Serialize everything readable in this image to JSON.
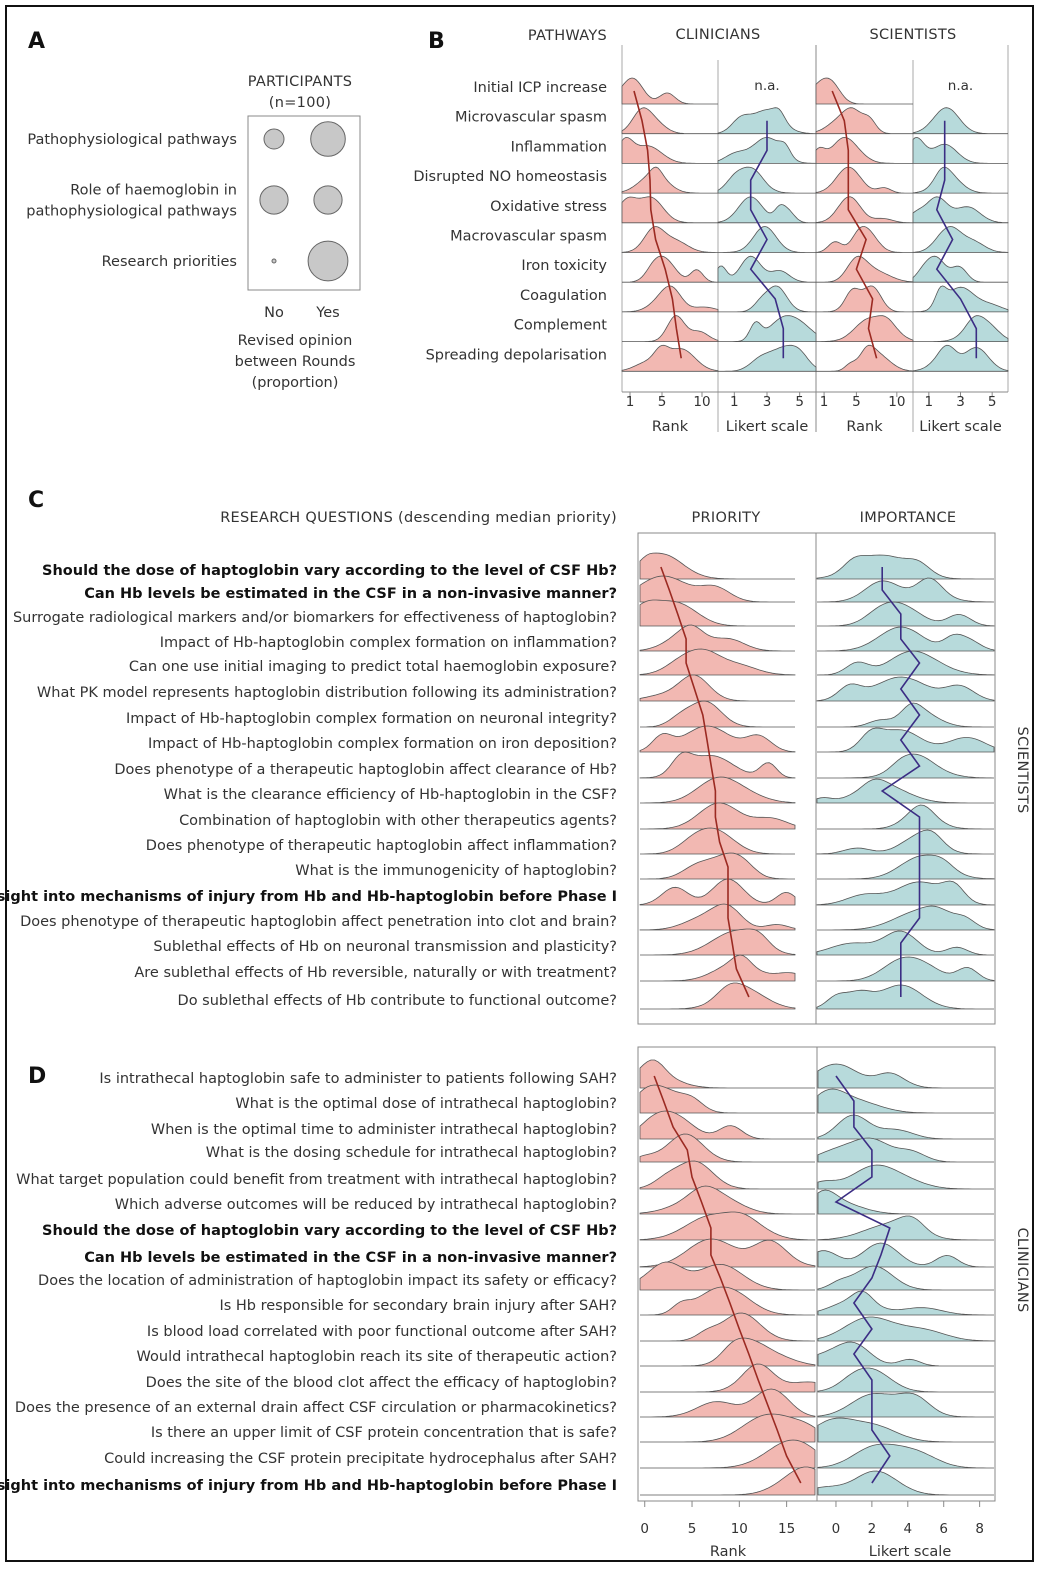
{
  "colors": {
    "rank": "#f2b8b2",
    "rank_line": "#9b2a22",
    "likert": "#b7dadb",
    "likert_line": "#3b2d84",
    "outline": "#555555"
  },
  "panels": {
    "a": "A",
    "b": "B",
    "c": "C",
    "d": "D"
  },
  "chart_data": [
    {
      "type": "scatter",
      "panel": "A",
      "title": "PARTICIPANTS",
      "subtitle": "(n=100)",
      "rows": [
        "Pathophysiological pathways",
        "Role of haemoglobin in pathophysiological pathways",
        "Research priorities"
      ],
      "row_lines": [
        [
          "Pathophysiological pathways"
        ],
        [
          "Role of haemoglobin in",
          "pathophysiological pathways"
        ],
        [
          "Research priorities"
        ]
      ],
      "columns": [
        "No",
        "Yes"
      ],
      "values": [
        [
          0.25,
          0.75
        ],
        [
          0.5,
          0.5
        ],
        [
          0.01,
          0.99
        ]
      ],
      "xlabel_lines": [
        "Revised opinion",
        "between Rounds",
        "(proportion)"
      ]
    },
    {
      "type": "area",
      "panel": "B",
      "row_header": "PATHWAYS",
      "rows": [
        "Initial ICP increase",
        "Microvascular spasm",
        "Inflammation",
        "Disrupted NO homeostasis",
        "Oxidative stress",
        "Macrovascular spasm",
        "Iron toxicity",
        "Coagulation",
        "Complement",
        "Spreading depolarisation"
      ],
      "groups": [
        "CLINICIANS",
        "SCIENTISTS"
      ],
      "na_text": "n.a.",
      "rank_axis": {
        "label": "Rank",
        "ticks": [
          1,
          5,
          10
        ],
        "range": [
          0,
          12
        ]
      },
      "likert_axis": {
        "label": "Likert scale",
        "ticks": [
          1,
          3,
          5
        ],
        "range": [
          0,
          6
        ]
      },
      "series": [
        {
          "name": "CLINICIANS",
          "rank_median": [
            1.5,
            2.5,
            3.2,
            3.5,
            3.6,
            4.2,
            5.4,
            6.3,
            6.8,
            7.4
          ],
          "likert_median": [
            null,
            3,
            3,
            2,
            2,
            3,
            2,
            3.5,
            4,
            4
          ]
        },
        {
          "name": "SCIENTISTS",
          "rank_median": [
            2,
            3.5,
            4,
            4,
            4,
            6.2,
            5,
            7,
            6.5,
            7.5
          ],
          "likert_median": [
            null,
            2,
            2,
            2,
            1.5,
            2.5,
            1.5,
            3,
            4,
            4
          ]
        }
      ]
    },
    {
      "type": "area",
      "panel": "C",
      "group": "SCIENTISTS",
      "row_header": "RESEARCH QUESTIONS (descending median priority)",
      "columns": [
        "PRIORITY",
        "IMPORTANCE"
      ],
      "bold_rows": [
        0,
        1,
        13
      ],
      "rows": [
        "Should the dose of haptoglobin vary according to the level of CSF Hb?",
        "Can Hb levels be estimated in the CSF in a non-invasive manner?",
        "Surrogate radiological markers and/or biomarkers for effectiveness of haptoglobin?",
        "Impact of Hb-haptoglobin complex formation on inflammation?",
        "Can one use initial imaging to predict total haemoglobin exposure?",
        "What PK model represents haptoglobin distribution following its administration?",
        "Impact of Hb-haptoglobin complex formation on neuronal integrity?",
        "Impact of Hb-haptoglobin complex formation on iron deposition?",
        "Does phenotype of a therapeutic haptoglobin affect clearance of Hb?",
        "What is the clearance efficiency of Hb-haptoglobin in the CSF?",
        "Combination of haptoglobin with other therapeutics agents?",
        "Does phenotype of therapeutic haptoglobin affect inflammation?",
        "What is the immunogenicity of haptoglobin?",
        "Further insight into mechanisms of injury from Hb and Hb-haptoglobin before Phase I",
        "Does phenotype of therapeutic haptoglobin affect penetration into clot and brain?",
        "Sublethal effects of Hb on neuronal transmission and plasticity?",
        "Are sublethal effects of Hb reversible, naturally or with treatment?",
        "Do sublethal effects of Hb contribute to functional outcome?"
      ],
      "rank_median": [
        2,
        3,
        4,
        5,
        5,
        6,
        7,
        7.5,
        8,
        8.5,
        8.5,
        9,
        10,
        10,
        10,
        10.5,
        11,
        12.5
      ],
      "likert_median": [
        3,
        3,
        4,
        4,
        5,
        4,
        5,
        4,
        5,
        3,
        5,
        5,
        5,
        5,
        5,
        4,
        4,
        4
      ]
    },
    {
      "type": "area",
      "panel": "D",
      "group": "CLINICIANS",
      "bold_rows": [
        6,
        7,
        16
      ],
      "rows": [
        "Is intrathecal haptoglobin safe to administer to patients following SAH?",
        "What is the optimal dose of intrathecal haptoglobin?",
        "When is the optimal time to administer intrathecal haptoglobin?",
        "What is the dosing schedule for intrathecal haptoglobin?",
        "What target population could benefit from treatment with intrathecal haptoglobin?",
        "Which adverse outcomes will be reduced by intrathecal haptoglobin?",
        "Should the dose of haptoglobin vary according to the level of CSF Hb?",
        "Can Hb levels be estimated in the CSF in a non-invasive manner?",
        "Does the location of administration of haptoglobin impact its safety or efficacy?",
        "Is Hb responsible for secondary brain injury after SAH?",
        "Is blood load correlated with poor functional outcome after SAH?",
        "Would intrathecal haptoglobin reach its site of therapeutic action?",
        "Does the site of the blood clot affect the efficacy of haptoglobin?",
        "Does the presence of an external drain affect CSF circulation or pharmacokinetics?",
        "Is there an upper limit of CSF protein concentration that is safe?",
        "Could increasing the CSF protein precipitate hydrocephalus after SAH?",
        "Further insight into mechanisms of injury from Hb and Hb-haptoglobin before Phase I"
      ],
      "rank_axis": {
        "label": "Rank",
        "ticks": [
          0,
          5,
          10,
          15
        ],
        "range": [
          -0.5,
          18
        ]
      },
      "likert_axis": {
        "label": "Likert scale",
        "ticks": [
          0,
          2,
          4,
          6,
          8
        ],
        "range": [
          -1,
          8.8
        ]
      },
      "rank_median": [
        1,
        2,
        3,
        4.5,
        5,
        6,
        7,
        7,
        8,
        9,
        10,
        11,
        12,
        13,
        14,
        15,
        16.5
      ],
      "likert_median": [
        0,
        1,
        1,
        2,
        2,
        0,
        3,
        2.5,
        2,
        1,
        2,
        1,
        2,
        2,
        2,
        3,
        2
      ]
    }
  ]
}
